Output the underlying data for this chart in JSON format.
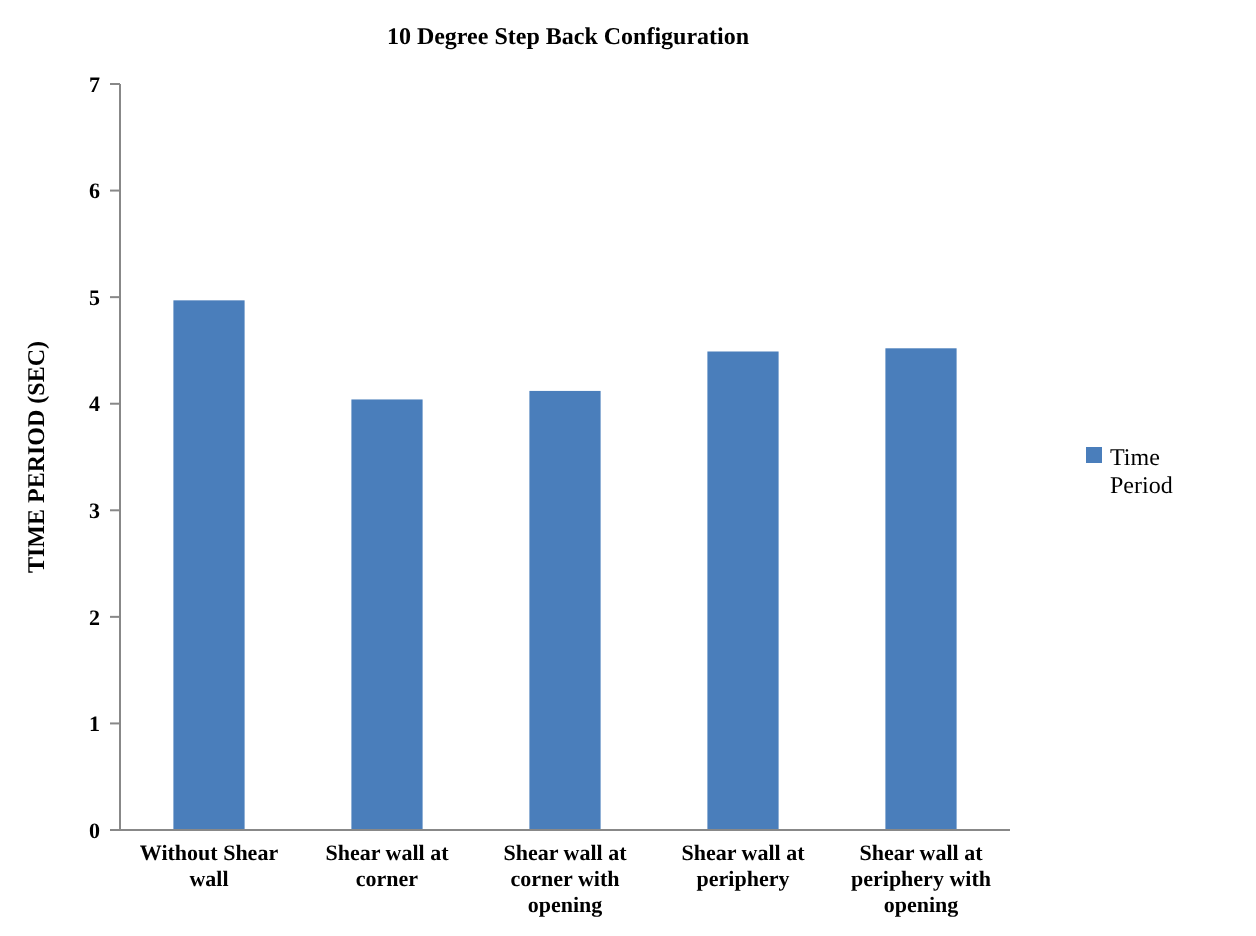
{
  "chart_data": {
    "type": "bar",
    "title": "10 Degree Step Back Configuration",
    "ylabel": "TIME PERIOD (SEC)",
    "categories": [
      "Without Shear wall",
      "Shear wall at corner",
      "Shear wall at corner with opening",
      "Shear wall at periphery",
      "Shear wall at periphery with opening"
    ],
    "series": [
      {
        "name": "Time Period",
        "color": "#4a7ebb",
        "values": [
          4.97,
          4.04,
          4.12,
          4.49,
          4.52
        ]
      }
    ],
    "ylim": [
      0,
      7
    ],
    "yticks": [
      0,
      1,
      2,
      3,
      4,
      5,
      6,
      7
    ],
    "grid": false,
    "legend": "right"
  }
}
